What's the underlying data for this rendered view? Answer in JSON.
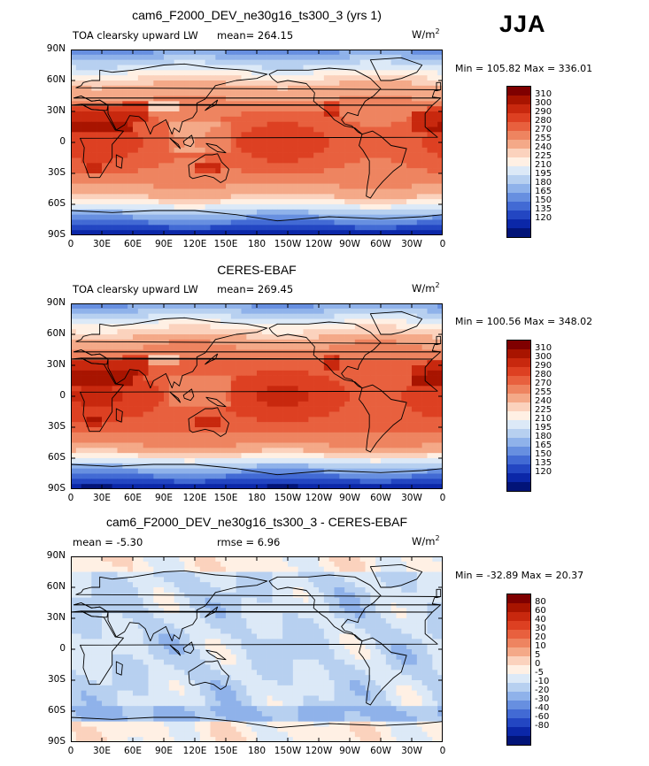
{
  "season": "JJA",
  "panels": [
    {
      "title": "cam6_F2000_DEV_ne30g16_ts300_3 (yrs 1)",
      "variable": "TOA clearsky upward LW",
      "mean": "mean= 264.15",
      "rmse": "",
      "units": "W/m",
      "units_exp": "2",
      "minmax": "Min = 105.82 Max = 336.01",
      "field": "abs_model"
    },
    {
      "title": "CERES-EBAF",
      "variable": "TOA clearsky upward LW",
      "mean": "mean= 269.45",
      "rmse": "",
      "units": "W/m",
      "units_exp": "2",
      "minmax": "Min = 100.56 Max = 348.02",
      "field": "abs_obs"
    },
    {
      "title": "cam6_F2000_DEV_ne30g16_ts300_3 - CERES-EBAF",
      "variable": "",
      "mean": "mean =   -5.30",
      "rmse": "rmse =    6.96",
      "units": "W/m",
      "units_exp": "2",
      "minmax": "Min = -32.89 Max =  20.37",
      "field": "diff"
    }
  ],
  "lat_ticks": [
    "90N",
    "60N",
    "30N",
    "0",
    "30S",
    "60S",
    "90S"
  ],
  "lon_ticks": [
    "0",
    "30E",
    "60E",
    "90E",
    "120E",
    "150E",
    "180",
    "150W",
    "120W",
    "90W",
    "60W",
    "30W",
    "0"
  ],
  "colorbars": {
    "abs": {
      "levels": [
        "310",
        "300",
        "290",
        "280",
        "270",
        "255",
        "240",
        "225",
        "210",
        "195",
        "180",
        "165",
        "150",
        "135",
        "120"
      ],
      "colors": [
        "#7f0000",
        "#a81400",
        "#c8280e",
        "#dd4022",
        "#e8603e",
        "#ee8460",
        "#f4a988",
        "#fbd2bd",
        "#fff0e4",
        "#dce9f7",
        "#b7d0f0",
        "#8fb2ea",
        "#678fe0",
        "#426ad4",
        "#2346c2",
        "#0b27a8",
        "#021478"
      ]
    },
    "diff": {
      "levels": [
        "80",
        "60",
        "40",
        "30",
        "20",
        "10",
        "5",
        "0",
        "-5",
        "-10",
        "-20",
        "-30",
        "-40",
        "-60",
        "-80"
      ],
      "colors": [
        "#7f0000",
        "#a81400",
        "#c8280e",
        "#dd4022",
        "#e8603e",
        "#ee8460",
        "#f4a988",
        "#fbd2bd",
        "#fff0e4",
        "#dce9f7",
        "#b7d0f0",
        "#8fb2ea",
        "#678fe0",
        "#426ad4",
        "#2346c2",
        "#0b27a8",
        "#021478"
      ]
    }
  },
  "chart_data": [
    {
      "type": "heatmap",
      "title": "cam6_F2000_DEV_ne30g16_ts300_3 (yrs 1)",
      "subtitle": "TOA clearsky upward LW",
      "units": "W/m2",
      "mean": 264.15,
      "min": 105.82,
      "max": 336.01,
      "x_ticks": [
        "0",
        "30E",
        "60E",
        "90E",
        "120E",
        "150E",
        "180",
        "150W",
        "120W",
        "90W",
        "60W",
        "30W",
        "0"
      ],
      "y_ticks": [
        "90N",
        "60N",
        "30N",
        "0",
        "30S",
        "60S",
        "90S"
      ],
      "xlim": [
        0,
        360
      ],
      "ylim": [
        -90,
        90
      ],
      "contour_levels": [
        120,
        135,
        150,
        165,
        180,
        195,
        210,
        225,
        240,
        255,
        270,
        280,
        290,
        300,
        310
      ]
    },
    {
      "type": "heatmap",
      "title": "CERES-EBAF",
      "subtitle": "TOA clearsky upward LW",
      "units": "W/m2",
      "mean": 269.45,
      "min": 100.56,
      "max": 348.02,
      "x_ticks": [
        "0",
        "30E",
        "60E",
        "90E",
        "120E",
        "150E",
        "180",
        "150W",
        "120W",
        "90W",
        "60W",
        "30W",
        "0"
      ],
      "y_ticks": [
        "90N",
        "60N",
        "30N",
        "0",
        "30S",
        "60S",
        "90S"
      ],
      "xlim": [
        0,
        360
      ],
      "ylim": [
        -90,
        90
      ],
      "contour_levels": [
        120,
        135,
        150,
        165,
        180,
        195,
        210,
        225,
        240,
        255,
        270,
        280,
        290,
        300,
        310
      ]
    },
    {
      "type": "heatmap",
      "title": "cam6_F2000_DEV_ne30g16_ts300_3 - CERES-EBAF",
      "units": "W/m2",
      "mean": -5.3,
      "rmse": 6.96,
      "min": -32.89,
      "max": 20.37,
      "x_ticks": [
        "0",
        "30E",
        "60E",
        "90E",
        "120E",
        "150E",
        "180",
        "150W",
        "120W",
        "90W",
        "60W",
        "30W",
        "0"
      ],
      "y_ticks": [
        "90N",
        "60N",
        "30N",
        "0",
        "30S",
        "60S",
        "90S"
      ],
      "xlim": [
        0,
        360
      ],
      "ylim": [
        -90,
        90
      ],
      "contour_levels": [
        -80,
        -60,
        -40,
        -30,
        -20,
        -10,
        -5,
        0,
        5,
        10,
        20,
        30,
        40,
        60,
        80
      ]
    }
  ]
}
